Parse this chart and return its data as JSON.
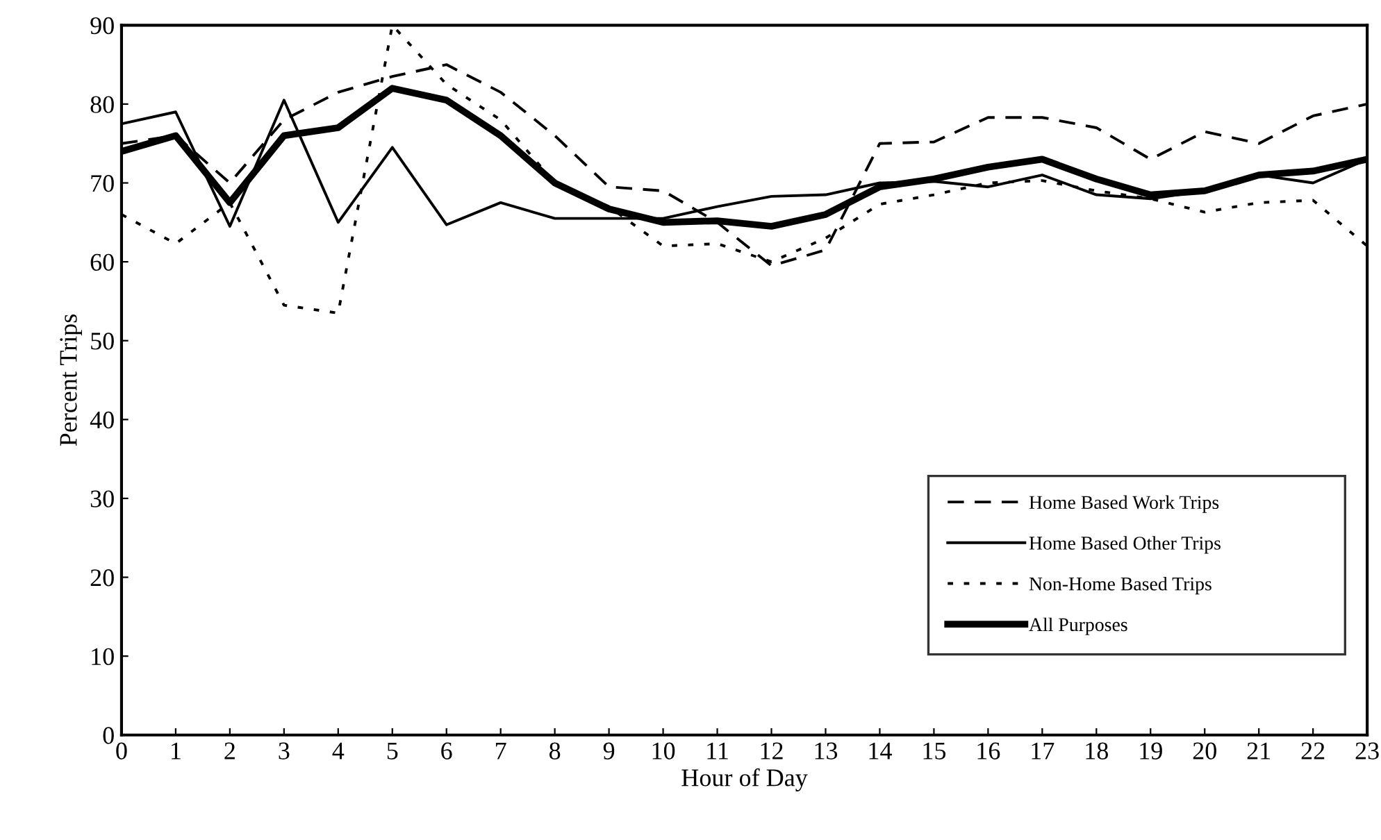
{
  "chart_data": {
    "type": "line",
    "xlabel": "Hour of Day",
    "ylabel": "Percent Trips",
    "x": [
      0,
      1,
      2,
      3,
      4,
      5,
      6,
      7,
      8,
      9,
      10,
      11,
      12,
      13,
      14,
      15,
      16,
      17,
      18,
      19,
      20,
      21,
      22,
      23
    ],
    "xlim": [
      0,
      23
    ],
    "xticks": [
      0,
      1,
      2,
      3,
      4,
      5,
      6,
      7,
      8,
      9,
      10,
      11,
      12,
      13,
      14,
      15,
      16,
      17,
      18,
      19,
      20,
      21,
      22,
      23
    ],
    "ylim": [
      0,
      90
    ],
    "yticks": [
      0,
      10,
      20,
      30,
      40,
      50,
      60,
      70,
      80,
      90
    ],
    "grid": false,
    "legend": "bottom right",
    "marker": "none",
    "series": [
      {
        "name": "Home Based Work Trips",
        "color": "#000000",
        "line_style": "dashed",
        "values": [
          75,
          76,
          70,
          78,
          81.5,
          83.5,
          85,
          81.5,
          76,
          69.5,
          69,
          65,
          59.5,
          61.5,
          75,
          75.2,
          78.3,
          78.3,
          77,
          73,
          76.5,
          75,
          78.5,
          80
        ]
      },
      {
        "name": "Home Based Other Trips",
        "color": "#000000",
        "line_style": "solid",
        "values": [
          77.5,
          79,
          64.5,
          80.5,
          65,
          74.5,
          64.7,
          67.5,
          65.5,
          65.5,
          65.5,
          67,
          68.3,
          68.5,
          70,
          70.2,
          69.5,
          71,
          68.5,
          68,
          69,
          71,
          70,
          73
        ]
      },
      {
        "name": "Non-Home Based Trips",
        "color": "#000000",
        "line_style": "dotted",
        "values": [
          66,
          62.3,
          67.5,
          54.5,
          53.5,
          90,
          82.5,
          78,
          70,
          67,
          62,
          62.3,
          60,
          63,
          67.3,
          68.5,
          70,
          70.3,
          69,
          68,
          66.3,
          67.5,
          67.8,
          62
        ]
      },
      {
        "name": "All Purposes",
        "color": "#000000",
        "line_style": "solid",
        "values": [
          74,
          76,
          67.5,
          76,
          77,
          82,
          80.5,
          76,
          70,
          66.7,
          65,
          65.2,
          64.5,
          66,
          69.5,
          70.5,
          72,
          73,
          70.5,
          68.5,
          69,
          71,
          71.5,
          73
        ]
      }
    ]
  }
}
